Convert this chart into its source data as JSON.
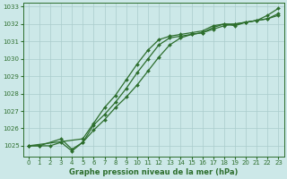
{
  "title": "Graphe pression niveau de la mer (hPa)",
  "background_color": "#cce8e8",
  "grid_color": "#aacccc",
  "line_color": "#2d6e2d",
  "ylim": [
    1024.4,
    1033.2
  ],
  "xlim": [
    -0.5,
    23.5
  ],
  "yticks": [
    1025,
    1026,
    1027,
    1028,
    1029,
    1030,
    1031,
    1032,
    1033
  ],
  "xticks": [
    0,
    1,
    2,
    3,
    4,
    5,
    6,
    7,
    8,
    9,
    10,
    11,
    12,
    13,
    14,
    15,
    16,
    17,
    18,
    19,
    20,
    21,
    22,
    23
  ],
  "series1_x": [
    0,
    1,
    2,
    3,
    4,
    5,
    6,
    7,
    8,
    9,
    10,
    11,
    12,
    13,
    14,
    15,
    16,
    17,
    18,
    19,
    20,
    21,
    22,
    23
  ],
  "series1_y": [
    1025.0,
    1025.0,
    1025.0,
    1025.2,
    1024.7,
    1025.2,
    1025.9,
    1026.5,
    1027.2,
    1027.8,
    1028.5,
    1029.3,
    1030.1,
    1030.8,
    1031.2,
    1031.4,
    1031.5,
    1031.7,
    1031.9,
    1032.0,
    1032.1,
    1032.2,
    1032.3,
    1032.5
  ],
  "series2_x": [
    0,
    1,
    3,
    4,
    5,
    6,
    7,
    8,
    9,
    10,
    11,
    12,
    13,
    14,
    15,
    16,
    17,
    18,
    19,
    20,
    21,
    22,
    23
  ],
  "series2_y": [
    1025.0,
    1025.0,
    1025.4,
    1024.8,
    1025.2,
    1026.2,
    1026.8,
    1027.5,
    1028.3,
    1029.2,
    1030.0,
    1030.8,
    1031.2,
    1031.3,
    1031.4,
    1031.5,
    1031.8,
    1032.0,
    1031.9,
    1032.1,
    1032.2,
    1032.3,
    1032.6
  ],
  "series3_x": [
    0,
    5,
    6,
    7,
    8,
    9,
    10,
    11,
    12,
    13,
    14,
    15,
    16,
    17,
    18,
    19,
    20,
    21,
    22,
    23
  ],
  "series3_y": [
    1025.0,
    1025.4,
    1026.3,
    1027.2,
    1027.9,
    1028.8,
    1029.7,
    1030.5,
    1031.1,
    1031.3,
    1031.4,
    1031.5,
    1031.6,
    1031.9,
    1032.0,
    1032.0,
    1032.1,
    1032.2,
    1032.5,
    1032.9
  ]
}
